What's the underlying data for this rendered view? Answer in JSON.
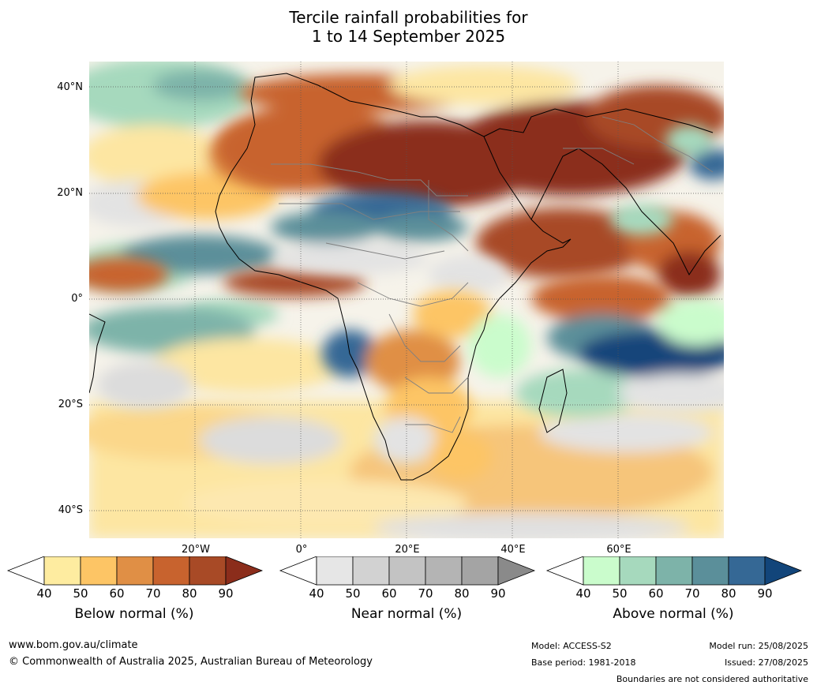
{
  "title": {
    "line1": "Tercile rainfall probabilities for",
    "line2": "1 to 14 September 2025"
  },
  "map": {
    "lat_labels": [
      "40°N",
      "20°N",
      "0°",
      "20°S",
      "40°S"
    ],
    "lon_labels": [
      "20°W",
      "0°",
      "20°E",
      "40°E",
      "60°E"
    ]
  },
  "colorbars": [
    {
      "name": "below",
      "title": "Below normal (%)",
      "ticks": [
        "40",
        "50",
        "60",
        "70",
        "80",
        "90"
      ],
      "colors": [
        "#ffffff",
        "#feeca0",
        "#fdc565",
        "#e08f45",
        "#c8632e",
        "#a84a26",
        "#8b2d1b"
      ]
    },
    {
      "name": "near",
      "title": "Near normal (%)",
      "ticks": [
        "40",
        "50",
        "60",
        "70",
        "80",
        "90"
      ],
      "colors": [
        "#ffffff",
        "#e6e6e6",
        "#d2d2d2",
        "#c3c3c3",
        "#b4b4b4",
        "#a4a4a4",
        "#8a8a8a"
      ]
    },
    {
      "name": "above",
      "title": "Above normal (%)",
      "ticks": [
        "40",
        "50",
        "60",
        "70",
        "80",
        "90"
      ],
      "colors": [
        "#ffffff",
        "#cafccc",
        "#a6d9bd",
        "#7db3a9",
        "#5b8f9a",
        "#356895",
        "#12457a"
      ]
    }
  ],
  "footer": {
    "url": "www.bom.gov.au/climate",
    "copyright": "© Commonwealth of Australia 2025, Australian Bureau of Meteorology",
    "model": "Model: ACCESS-S2",
    "base_period": "Base period: 1981-2018",
    "model_run": "Model run: 25/08/2025",
    "issued": "Issued: 27/08/2025",
    "disclaimer": "Boundaries are not considered authoritative"
  }
}
